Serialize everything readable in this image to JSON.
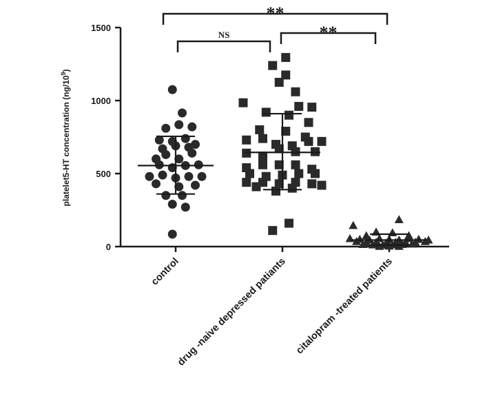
{
  "chart_data": {
    "type": "scatter",
    "title": "",
    "xlabel": "",
    "ylabel": "platelet5-HT concentration (ng/10",
    "ylabel_sup": "9",
    "ylabel_tail": ")",
    "ylim": [
      0,
      1500
    ],
    "yticks": [
      0,
      500,
      1000,
      1500
    ],
    "ytick_labels": [
      "0",
      "500",
      "1000",
      "1500"
    ],
    "grid": false,
    "categories": [
      "control",
      "drug -naive depressed patiants",
      "citalopram -treated patients"
    ],
    "series": [
      {
        "marker": "circle",
        "points": [
          [
            -0.05,
            1075
          ],
          [
            0.1,
            915
          ],
          [
            -0.15,
            810
          ],
          [
            0.05,
            835
          ],
          [
            0.25,
            820
          ],
          [
            -0.25,
            730
          ],
          [
            -0.05,
            720
          ],
          [
            0.15,
            740
          ],
          [
            0.3,
            700
          ],
          [
            -0.2,
            670
          ],
          [
            0.0,
            690
          ],
          [
            0.2,
            680
          ],
          [
            -0.3,
            600
          ],
          [
            -0.15,
            630
          ],
          [
            0.05,
            600
          ],
          [
            0.25,
            640
          ],
          [
            -0.25,
            560
          ],
          [
            -0.05,
            540
          ],
          [
            0.15,
            555
          ],
          [
            0.35,
            560
          ],
          [
            -0.4,
            480
          ],
          [
            -0.2,
            490
          ],
          [
            0.0,
            470
          ],
          [
            0.2,
            480
          ],
          [
            0.4,
            480
          ],
          [
            -0.3,
            430
          ],
          [
            0.05,
            410
          ],
          [
            0.3,
            420
          ],
          [
            -0.15,
            350
          ],
          [
            0.1,
            350
          ],
          [
            -0.05,
            290
          ],
          [
            0.15,
            270
          ],
          [
            -0.05,
            85
          ]
        ],
        "mean": 555,
        "sd_low": 360,
        "sd_high": 755
      },
      {
        "marker": "square",
        "points": [
          [
            0.05,
            1295
          ],
          [
            -0.15,
            1240
          ],
          [
            0.05,
            1175
          ],
          [
            -0.05,
            1125
          ],
          [
            0.2,
            1060
          ],
          [
            -0.6,
            985
          ],
          [
            0.25,
            960
          ],
          [
            0.45,
            955
          ],
          [
            -0.25,
            920
          ],
          [
            0.1,
            900
          ],
          [
            0.4,
            850
          ],
          [
            -0.35,
            800
          ],
          [
            0.05,
            790
          ],
          [
            0.35,
            750
          ],
          [
            -0.55,
            730
          ],
          [
            -0.3,
            740
          ],
          [
            -0.1,
            700
          ],
          [
            0.15,
            690
          ],
          [
            0.4,
            720
          ],
          [
            0.6,
            720
          ],
          [
            -0.55,
            640
          ],
          [
            -0.3,
            620
          ],
          [
            -0.05,
            670
          ],
          [
            0.2,
            650
          ],
          [
            0.5,
            650
          ],
          [
            -0.55,
            540
          ],
          [
            -0.3,
            560
          ],
          [
            -0.05,
            560
          ],
          [
            0.2,
            560
          ],
          [
            0.45,
            530
          ],
          [
            -0.5,
            500
          ],
          [
            -0.25,
            480
          ],
          [
            0.0,
            490
          ],
          [
            0.25,
            500
          ],
          [
            0.5,
            500
          ],
          [
            -0.55,
            440
          ],
          [
            -0.3,
            440
          ],
          [
            -0.05,
            430
          ],
          [
            0.2,
            440
          ],
          [
            0.45,
            430
          ],
          [
            0.6,
            420
          ],
          [
            -0.4,
            410
          ],
          [
            -0.1,
            380
          ],
          [
            0.15,
            400
          ],
          [
            -0.15,
            110
          ],
          [
            0.1,
            160
          ]
        ],
        "mean": 645,
        "sd_low": 390,
        "sd_high": 910
      },
      {
        "marker": "triangle",
        "points": [
          [
            -0.55,
            145
          ],
          [
            0.15,
            185
          ],
          [
            -0.2,
            100
          ],
          [
            0.05,
            95
          ],
          [
            -0.35,
            75
          ],
          [
            0.3,
            75
          ],
          [
            -0.6,
            55
          ],
          [
            -0.45,
            50
          ],
          [
            -0.3,
            45
          ],
          [
            -0.15,
            55
          ],
          [
            0.0,
            50
          ],
          [
            0.15,
            45
          ],
          [
            0.3,
            55
          ],
          [
            0.45,
            50
          ],
          [
            0.6,
            45
          ],
          [
            -0.5,
            35
          ],
          [
            -0.35,
            30
          ],
          [
            -0.2,
            30
          ],
          [
            -0.05,
            25
          ],
          [
            0.1,
            30
          ],
          [
            0.25,
            30
          ],
          [
            0.4,
            30
          ],
          [
            0.55,
            35
          ],
          [
            -0.4,
            15
          ],
          [
            -0.25,
            12
          ],
          [
            -0.1,
            10
          ],
          [
            0.05,
            12
          ],
          [
            0.2,
            15
          ],
          [
            0.35,
            18
          ],
          [
            -0.15,
            2
          ],
          [
            0.0,
            4
          ],
          [
            0.15,
            2
          ]
        ],
        "mean": 45,
        "sd_low": 10,
        "sd_high": 85
      }
    ],
    "annotations": {
      "brackets": [
        {
          "from": 0,
          "to": 1,
          "level": 1425,
          "label": "NS"
        },
        {
          "from": 1,
          "to": 2,
          "level": 1425,
          "label": "**"
        },
        {
          "from": 0,
          "to": 2,
          "level": 1590,
          "label": "**"
        }
      ]
    }
  }
}
